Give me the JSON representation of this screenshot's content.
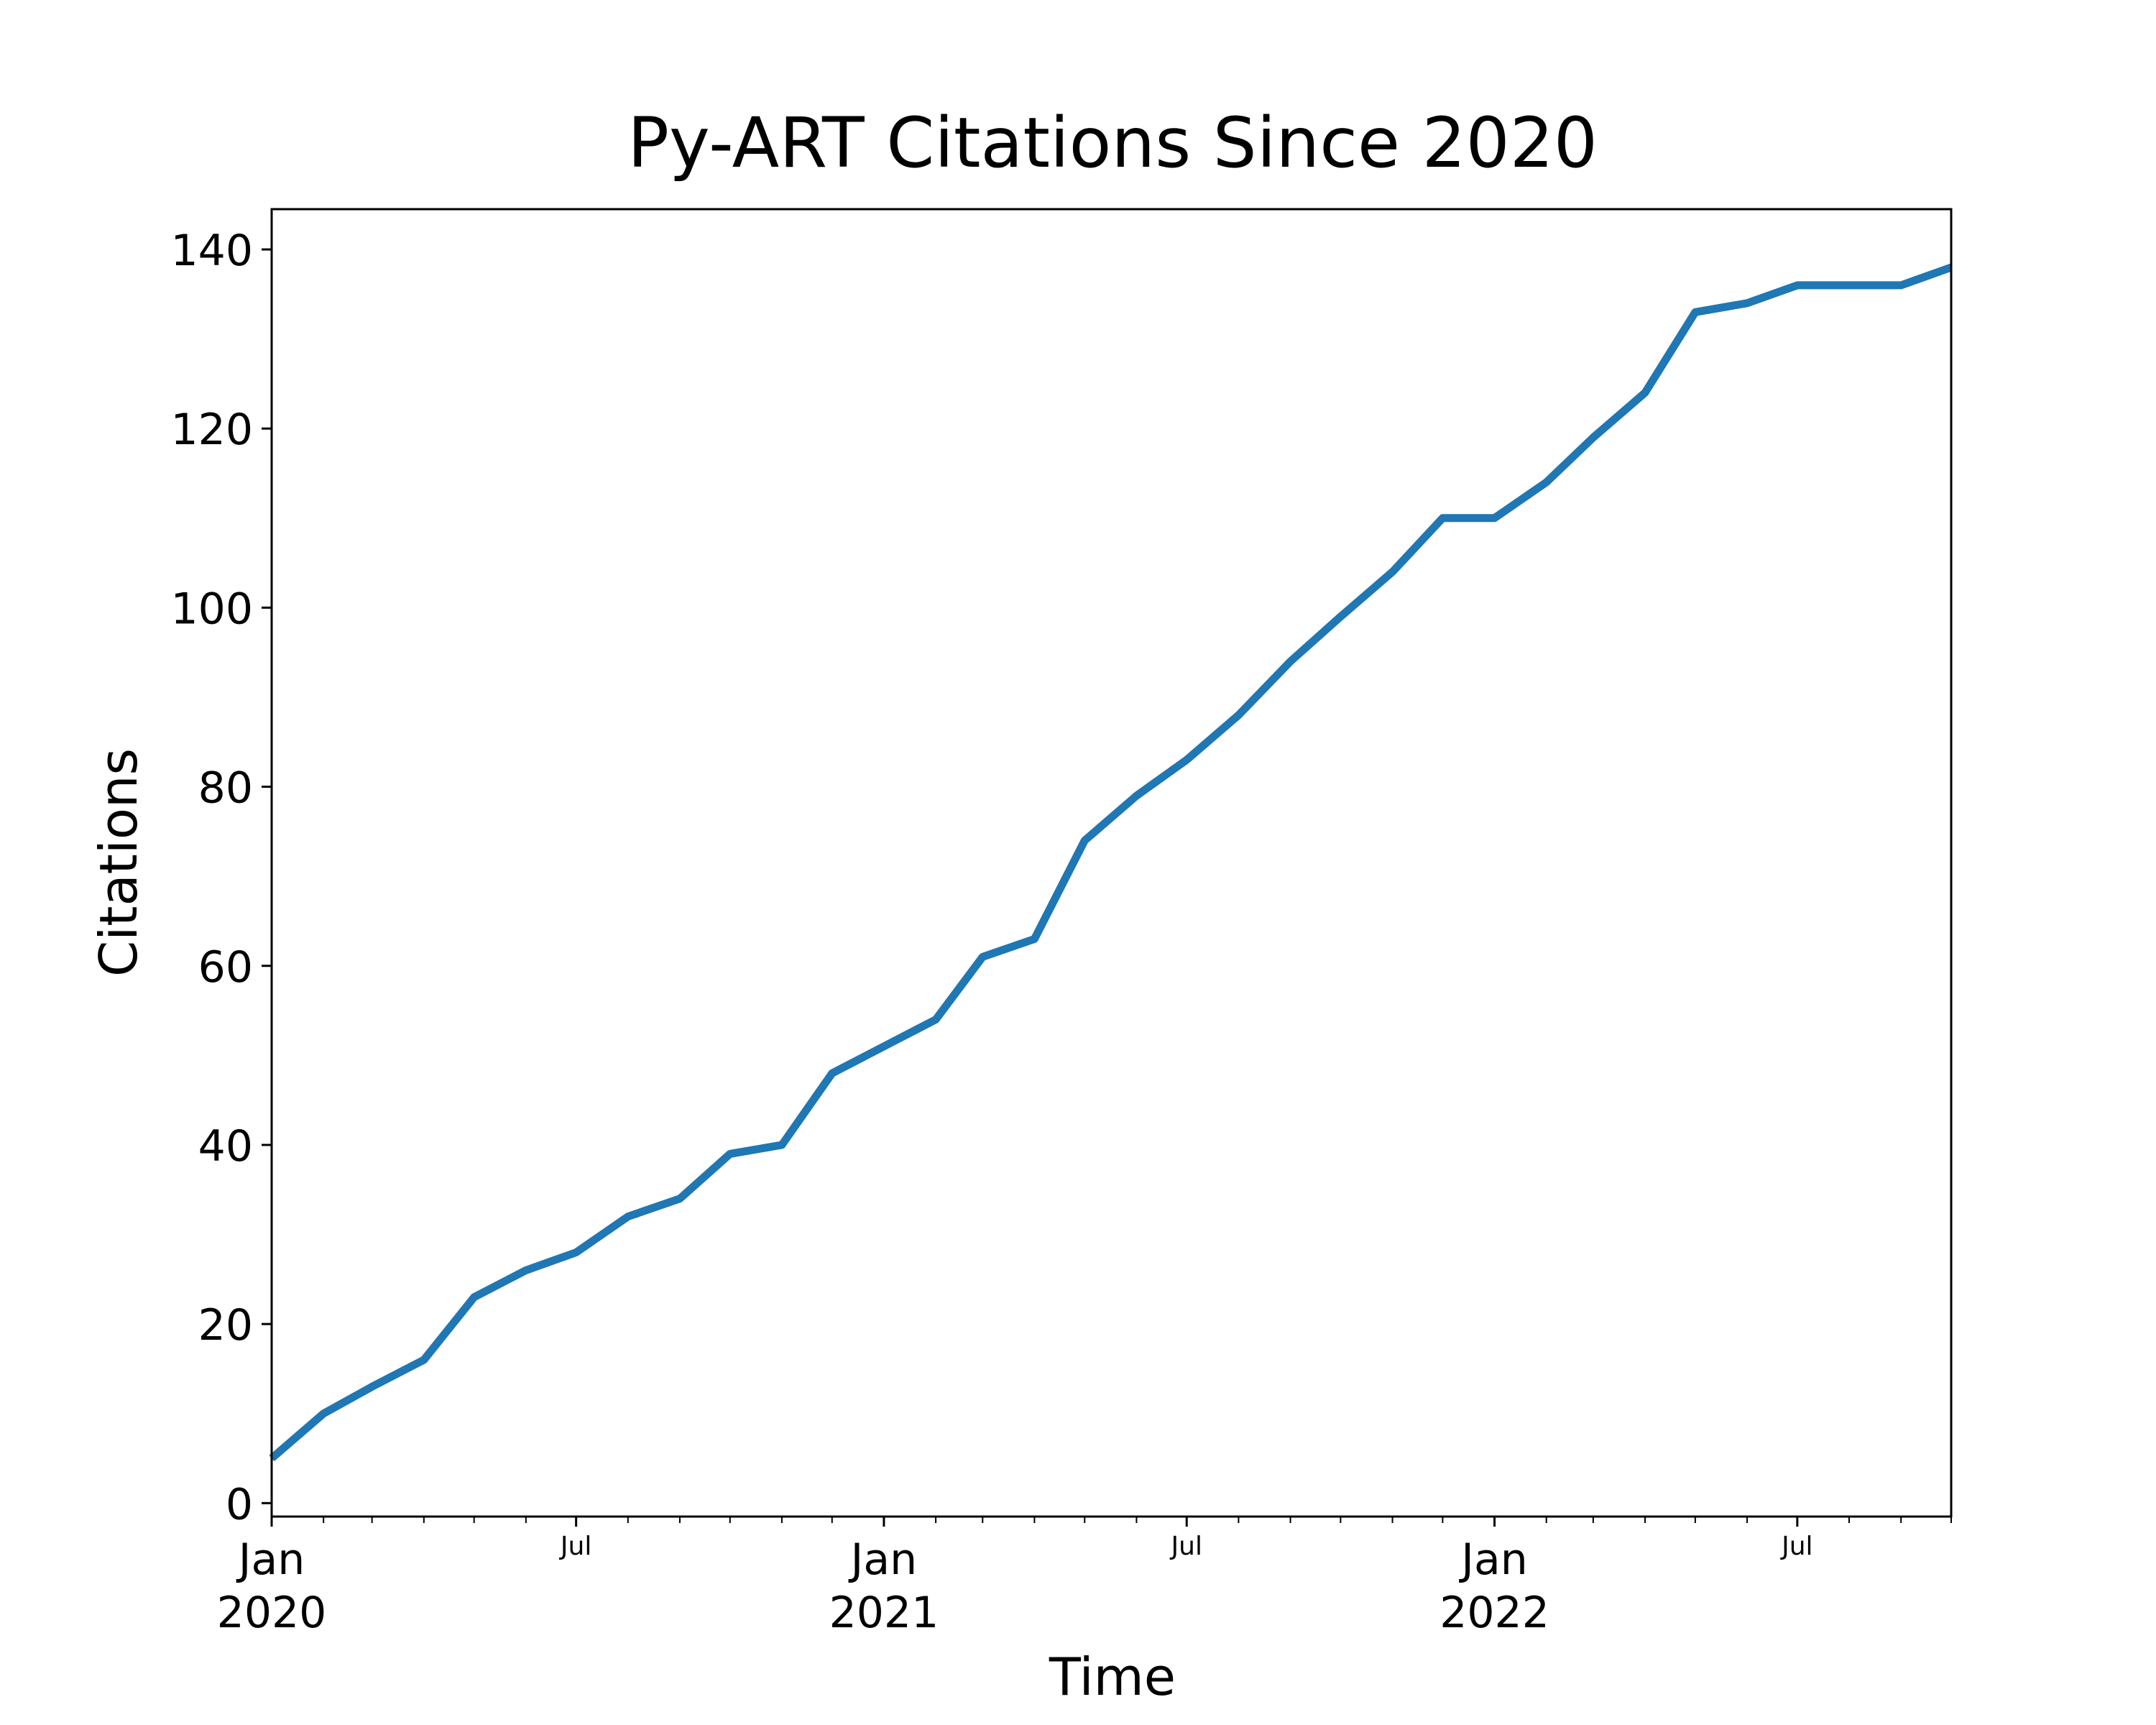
{
  "chart_data": {
    "type": "line",
    "title": "Py-ART Citations Since 2020",
    "xlabel": "Time",
    "ylabel": "Citations",
    "x": [
      "2020-01-01",
      "2020-02-01",
      "2020-03-01",
      "2020-04-01",
      "2020-05-01",
      "2020-06-01",
      "2020-07-01",
      "2020-08-01",
      "2020-09-01",
      "2020-10-01",
      "2020-11-01",
      "2020-12-01",
      "2021-01-01",
      "2021-02-01",
      "2021-03-01",
      "2021-04-01",
      "2021-05-01",
      "2021-06-01",
      "2021-07-01",
      "2021-08-01",
      "2021-09-01",
      "2021-10-01",
      "2021-11-01",
      "2021-12-01",
      "2022-01-01",
      "2022-02-01",
      "2022-03-01",
      "2022-04-01",
      "2022-05-01",
      "2022-06-01",
      "2022-07-01",
      "2022-08-01",
      "2022-09-01",
      "2022-10-01"
    ],
    "series": [
      {
        "values": [
          5,
          10,
          13,
          16,
          23,
          26,
          28,
          32,
          34,
          39,
          40,
          48,
          51,
          54,
          61,
          63,
          74,
          79,
          83,
          88,
          94,
          99,
          104,
          110,
          110,
          114,
          119,
          124,
          133,
          134,
          136,
          136,
          136,
          138
        ]
      }
    ],
    "xlim": [
      "2020-01-01",
      "2022-10-01"
    ],
    "ylim": [
      -1.5,
      144.5
    ],
    "yticks": [
      "0",
      "20",
      "40",
      "60",
      "80",
      "100",
      "120",
      "140"
    ],
    "ytick_values": [
      0,
      20,
      40,
      60,
      80,
      100,
      120,
      140
    ],
    "xticks": [
      {
        "date": "2020-01-01",
        "month": "Jan",
        "year": "2020"
      },
      {
        "date": "2020-07-01",
        "month": "Jul",
        "year": ""
      },
      {
        "date": "2021-01-01",
        "month": "Jan",
        "year": "2021"
      },
      {
        "date": "2021-07-01",
        "month": "Jul",
        "year": ""
      },
      {
        "date": "2022-01-01",
        "month": "Jan",
        "year": "2022"
      },
      {
        "date": "2022-07-01",
        "month": "Jul",
        "year": ""
      }
    ],
    "line_color": "#1f77b4",
    "grid": false,
    "legend": "none"
  }
}
